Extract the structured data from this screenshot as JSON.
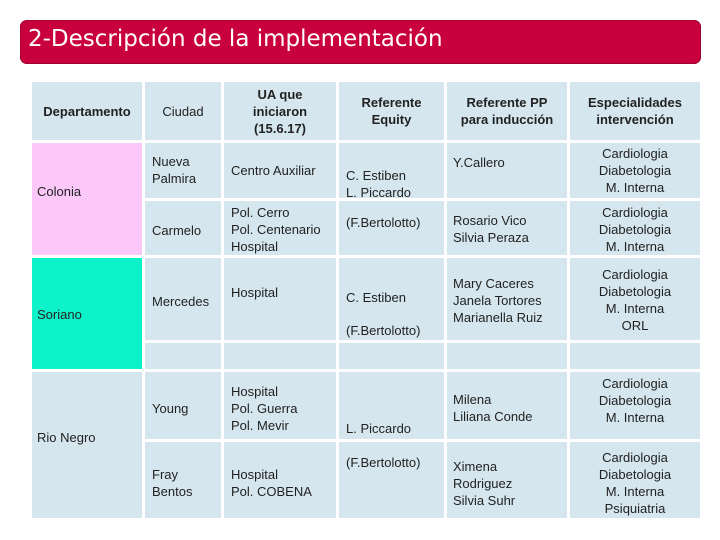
{
  "title": "2-Descripción de la implementación",
  "headers": {
    "departamento": "Departamento",
    "ciudad": "Ciudad",
    "ua": "UA que\niniciaron\n(15.6.17)",
    "referente_equity": "Referente\nEquity",
    "referente_pp": "Referente PP\npara inducción",
    "especialidades": "Especialidades\nintervención"
  },
  "departments": {
    "colonia": "Colonia",
    "soriano": "Soriano",
    "rio_negro": "Rio Negro"
  },
  "rows": {
    "nueva_palmira": {
      "ciudad": "Nueva\nPalmira",
      "ua": "Centro Auxiliar",
      "equity": "C. Estiben\nL. Piccardo",
      "pp": "Y.Callero",
      "esp": "Cardiologia\nDiabetologia\nM. Interna"
    },
    "carmelo": {
      "ciudad": "Carmelo",
      "ua": "Pol. Cerro\nPol. Centenario\nHospital",
      "equity": "(F.Bertolotto)",
      "pp": "Rosario Vico\nSilvia Peraza",
      "esp": "Cardiologia\nDiabetologia\nM. Interna"
    },
    "mercedes": {
      "ciudad": "Mercedes",
      "ua": "Hospital",
      "equity": "C. Estiben",
      "equity2": "(F.Bertolotto)",
      "pp": "Mary  Caceres\nJanela Tortores\nMarianella Ruiz",
      "esp": "Cardiologia\nDiabetologia\nM. Interna\nORL"
    },
    "young": {
      "ciudad": "Young",
      "ua": "Hospital\nPol. Guerra\nPol. Mevir",
      "equity": "L. Piccardo",
      "pp": "Milena\nLiliana Conde",
      "esp": "Cardiologia\nDiabetologia\nM. Interna"
    },
    "fray_bentos": {
      "ciudad": "Fray\nBentos",
      "ua": "Hospital\nPol. COBENA",
      "equity": "(F.Bertolotto)",
      "pp": "Ximena\nRodriguez\nSilvia Suhr",
      "esp": "Cardiologia\nDiabetologia\nM. Interna\nPsiquiatria"
    }
  }
}
